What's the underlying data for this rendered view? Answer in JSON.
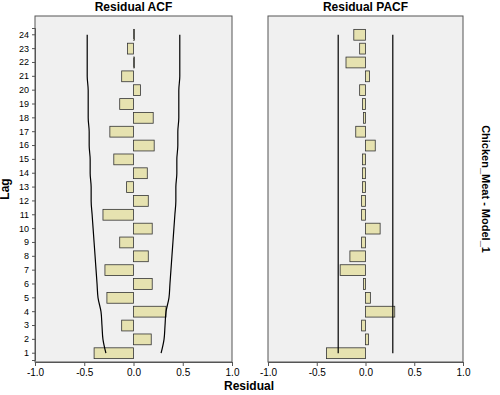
{
  "chart_data": [
    {
      "type": "bar",
      "orientation": "horizontal",
      "title": "Residual ACF",
      "x_label": "Residual",
      "y_label": "Lag",
      "categories": [
        "1",
        "2",
        "3",
        "4",
        "5",
        "6",
        "7",
        "8",
        "9",
        "10",
        "11",
        "12",
        "13",
        "14",
        "15",
        "16",
        "17",
        "18",
        "19",
        "20",
        "21",
        "22",
        "23",
        "24"
      ],
      "values": [
        -0.4,
        0.18,
        -0.12,
        0.33,
        -0.27,
        0.19,
        -0.29,
        0.15,
        -0.14,
        0.19,
        -0.31,
        0.15,
        -0.07,
        0.14,
        -0.2,
        0.21,
        -0.24,
        0.2,
        -0.14,
        0.07,
        -0.12,
        0.01,
        -0.06,
        0.01
      ],
      "upper_limit": [
        0.28,
        0.31,
        0.32,
        0.33,
        0.36,
        0.37,
        0.38,
        0.39,
        0.4,
        0.41,
        0.42,
        0.43,
        0.43,
        0.44,
        0.44,
        0.45,
        0.45,
        0.46,
        0.46,
        0.46,
        0.47,
        0.47,
        0.47,
        0.47
      ],
      "lower_limit": [
        -0.28,
        -0.31,
        -0.32,
        -0.33,
        -0.36,
        -0.37,
        -0.38,
        -0.39,
        -0.4,
        -0.41,
        -0.42,
        -0.43,
        -0.43,
        -0.44,
        -0.44,
        -0.45,
        -0.45,
        -0.46,
        -0.46,
        -0.46,
        -0.47,
        -0.47,
        -0.47,
        -0.47
      ],
      "color": "#e6e2b0",
      "xlim": [
        -1,
        1
      ],
      "xticks": [
        {
          "value": -1,
          "label": "-1.0"
        },
        {
          "value": -0.5,
          "label": "-0.5"
        },
        {
          "value": 0,
          "label": "0.0"
        },
        {
          "value": 0.5,
          "label": "0.5"
        },
        {
          "value": 1,
          "label": "1.0"
        }
      ]
    },
    {
      "type": "bar",
      "orientation": "horizontal",
      "title": "Residual PACF",
      "facet_label": "Chicken_Meat - Model_1",
      "tick_labels": "x",
      "categories": [
        "1",
        "2",
        "3",
        "4",
        "5",
        "6",
        "7",
        "8",
        "9",
        "10",
        "11",
        "12",
        "13",
        "14",
        "15",
        "16",
        "17",
        "18",
        "19",
        "20",
        "21",
        "22",
        "23",
        "24"
      ],
      "values": [
        -0.4,
        0.03,
        -0.04,
        0.3,
        0.05,
        -0.02,
        -0.26,
        -0.16,
        -0.04,
        0.15,
        -0.04,
        -0.04,
        -0.03,
        -0.03,
        -0.03,
        0.1,
        -0.1,
        -0.02,
        -0.03,
        -0.06,
        0.04,
        -0.2,
        -0.06,
        -0.12
      ],
      "upper_limit": [
        0.28,
        0.28,
        0.28,
        0.28,
        0.28,
        0.28,
        0.28,
        0.28,
        0.28,
        0.28,
        0.28,
        0.28,
        0.28,
        0.28,
        0.28,
        0.28,
        0.28,
        0.28,
        0.28,
        0.28,
        0.28,
        0.28,
        0.28,
        0.28
      ],
      "lower_limit": [
        -0.28,
        -0.28,
        -0.28,
        -0.28,
        -0.28,
        -0.28,
        -0.28,
        -0.28,
        -0.28,
        -0.28,
        -0.28,
        -0.28,
        -0.28,
        -0.28,
        -0.28,
        -0.28,
        -0.28,
        -0.28,
        -0.28,
        -0.28,
        -0.28,
        -0.28,
        -0.28,
        -0.28
      ],
      "color": "#e6e2b0",
      "xlim": [
        -1,
        1
      ],
      "xticks": [
        {
          "value": -1,
          "label": "-1.0"
        },
        {
          "value": -0.5,
          "label": "-0.5"
        },
        {
          "value": 0,
          "label": "0.0"
        },
        {
          "value": 0.5,
          "label": "0.5"
        },
        {
          "value": 1,
          "label": "1.0"
        }
      ]
    }
  ]
}
